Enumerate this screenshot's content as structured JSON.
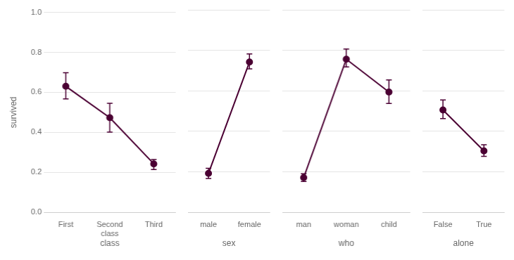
{
  "chart_data": [
    {
      "type": "line",
      "xlabel": "class",
      "ylabel": "survived",
      "categories": [
        "First",
        "Second\nclass",
        "Third"
      ],
      "values": [
        0.63,
        0.473,
        0.242
      ],
      "ci_lower": [
        0.063,
        0.072,
        0.028
      ],
      "ci_upper": [
        0.068,
        0.072,
        0.022
      ],
      "color": "#4B0033",
      "marker": "circle",
      "ylim": [
        0.0,
        1.0
      ],
      "yticks": [
        {
          "value": 0.0,
          "label": "0.0"
        },
        0.2,
        0.4,
        0.6,
        0.8,
        {
          "value": 1.0,
          "label": "1.0"
        }
      ],
      "grid": true
    },
    {
      "type": "line",
      "xlabel": "sex",
      "categories": [
        "male",
        "female"
      ],
      "values": [
        0.192,
        0.742
      ],
      "ci_lower": [
        0.025,
        0.034
      ],
      "ci_upper": [
        0.025,
        0.04
      ],
      "color": "#4B0033",
      "marker": "circle",
      "ylim": [
        0.0,
        1.0
      ],
      "yticks": [
        {
          "value": 0.0,
          "label": "0.0"
        },
        0.2,
        0.4,
        0.6,
        0.8,
        {
          "value": 1.0,
          "label": "1.0"
        }
      ],
      "grid": true,
      "tick_labels": "x"
    },
    {
      "type": "line",
      "xlabel": "who",
      "categories": [
        "man",
        "woman",
        "child"
      ],
      "values": [
        0.171,
        0.756,
        0.594
      ],
      "ci_lower": [
        0.019,
        0.038,
        0.057
      ],
      "ci_upper": [
        0.019,
        0.05,
        0.06
      ],
      "color": "#4B0033",
      "marker": "circle",
      "ylim": [
        0.0,
        1.0
      ],
      "yticks": [
        {
          "value": 0.0,
          "label": "0.0"
        },
        0.2,
        0.4,
        0.6,
        0.8,
        {
          "value": 1.0,
          "label": "1.0"
        }
      ],
      "grid": true,
      "tick_labels": "x"
    },
    {
      "type": "line",
      "xlabel": "alone",
      "categories": [
        "False",
        "True"
      ],
      "values": [
        0.505,
        0.303
      ],
      "ci_lower": [
        0.042,
        0.027
      ],
      "ci_upper": [
        0.05,
        0.03
      ],
      "color": "#4B0033",
      "marker": "circle",
      "ylim": [
        0.0,
        1.0
      ],
      "yticks": [
        {
          "value": 0.0,
          "label": "0.0"
        },
        0.2,
        0.4,
        0.6,
        0.8,
        {
          "value": 1.0,
          "label": "1.0"
        }
      ],
      "grid": true,
      "tick_labels": "x"
    }
  ]
}
